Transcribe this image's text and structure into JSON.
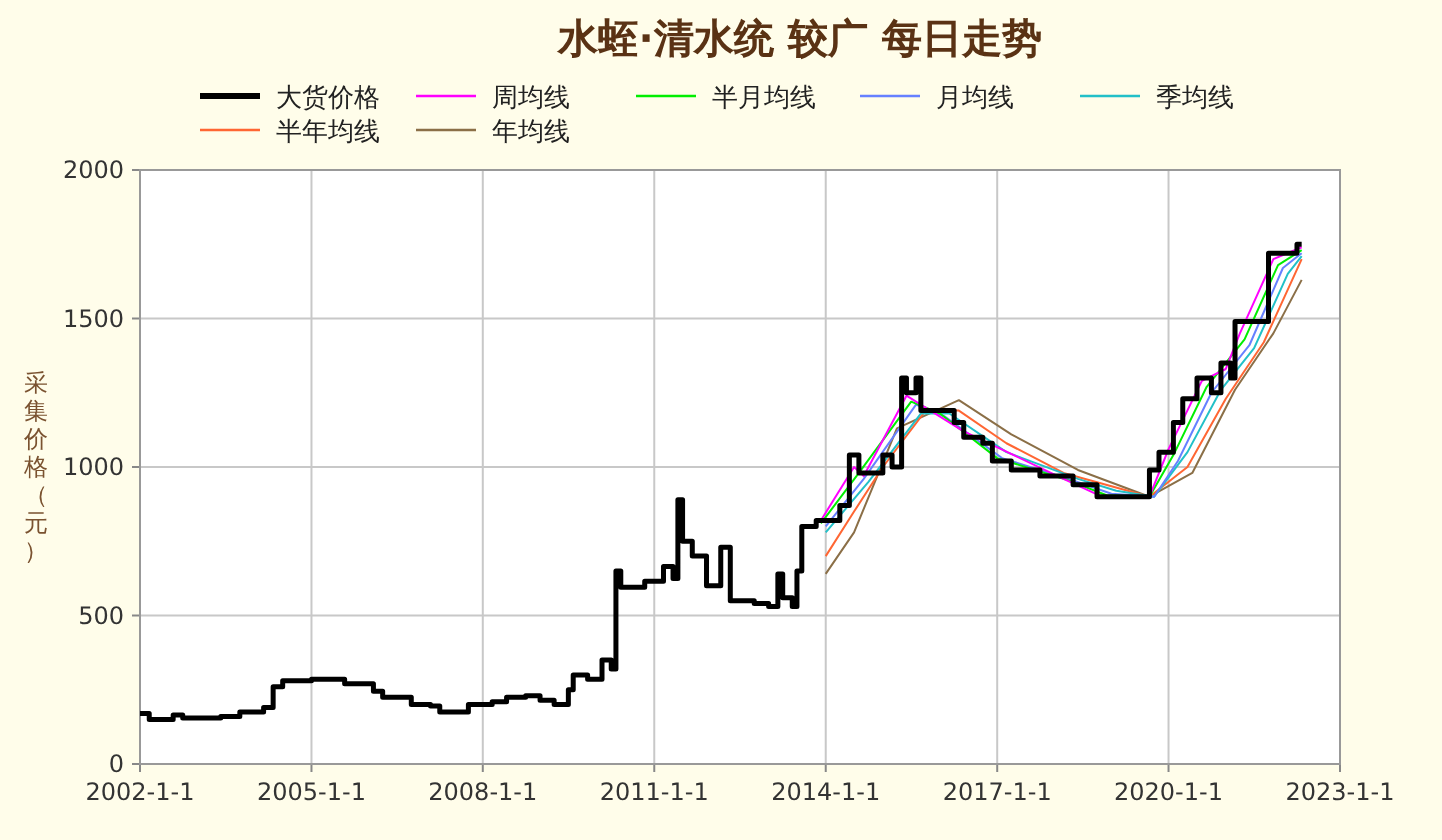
{
  "chart_data": {
    "type": "line",
    "title": "水蛭·清水统 较广 每日走势",
    "ylabel": "采集价格（元）",
    "legend": "top",
    "grid": true,
    "xlim": [
      "2002-01-01",
      "2023-01-01"
    ],
    "xticks": [
      {
        "value": "2002-01-01",
        "label": "2002-1-1"
      },
      {
        "value": "2005-01-01",
        "label": "2005-1-1"
      },
      {
        "value": "2008-01-01",
        "label": "2008-1-1"
      },
      {
        "value": "2011-01-01",
        "label": "2011-1-1"
      },
      {
        "value": "2014-01-01",
        "label": "2014-1-1"
      },
      {
        "value": "2017-01-01",
        "label": "2017-1-1"
      },
      {
        "value": "2020-01-01",
        "label": "2020-1-1"
      },
      {
        "value": "2023-01-01",
        "label": "2023-1-1"
      }
    ],
    "ylim": [
      0,
      2000
    ],
    "yticks": [
      0,
      500,
      1000,
      1500,
      2000
    ],
    "series": [
      {
        "name": "大货价格",
        "type": "step",
        "color": "#000000",
        "x": [
          "2002-01",
          "2002-03",
          "2002-08",
          "2002-10",
          "2003-06",
          "2003-10",
          "2004-03",
          "2004-05",
          "2004-07",
          "2005-01",
          "2005-08",
          "2006-02",
          "2006-04",
          "2006-10",
          "2007-02",
          "2007-04",
          "2007-10",
          "2008-03",
          "2008-06",
          "2008-10",
          "2009-01",
          "2009-04",
          "2009-07",
          "2009-08",
          "2009-11",
          "2010-02",
          "2010-04",
          "2010-05",
          "2010-06",
          "2010-11",
          "2011-03",
          "2011-05",
          "2011-06",
          "2011-07",
          "2011-09",
          "2011-12",
          "2012-03",
          "2012-05",
          "2012-10",
          "2013-01",
          "2013-03",
          "2013-04",
          "2013-06",
          "2013-07",
          "2013-08",
          "2013-11",
          "2014-04",
          "2014-06",
          "2014-08",
          "2015-01",
          "2015-03",
          "2015-05",
          "2015-06",
          "2015-08",
          "2015-09",
          "2016-04",
          "2016-06",
          "2016-10",
          "2016-12",
          "2017-04",
          "2017-10",
          "2018-05",
          "2018-10",
          "2019-09",
          "2019-11",
          "2020-02",
          "2020-04",
          "2020-07",
          "2020-10",
          "2020-12",
          "2021-02",
          "2021-03",
          "2021-10",
          "2022-04",
          "2022-05"
        ],
        "values": [
          170,
          150,
          165,
          155,
          160,
          175,
          190,
          260,
          280,
          285,
          270,
          245,
          225,
          200,
          195,
          175,
          200,
          210,
          225,
          230,
          215,
          200,
          250,
          300,
          285,
          350,
          320,
          650,
          595,
          615,
          665,
          625,
          890,
          750,
          700,
          600,
          730,
          550,
          540,
          530,
          640,
          560,
          530,
          650,
          800,
          820,
          870,
          1040,
          980,
          1040,
          1000,
          1300,
          1250,
          1300,
          1190,
          1150,
          1100,
          1080,
          1020,
          990,
          970,
          940,
          900,
          990,
          1050,
          1150,
          1230,
          1300,
          1250,
          1350,
          1300,
          1490,
          1720,
          1750,
          1750
        ]
      },
      {
        "name": "周均线",
        "type": "line",
        "color": "#ff00ff",
        "x": [
          "2013-12",
          "2014-07",
          "2014-09",
          "2015-06",
          "2015-10",
          "2016-06",
          "2018-03",
          "2018-11",
          "2019-09",
          "2020-01",
          "2020-08",
          "2021-01",
          "2021-04",
          "2021-11",
          "2022-05"
        ],
        "values": [
          820,
          1000,
          970,
          1240,
          1200,
          1120,
          960,
          900,
          900,
          1060,
          1290,
          1330,
          1450,
          1700,
          1740
        ]
      },
      {
        "name": "半月均线",
        "type": "line",
        "color": "#00ee00",
        "x": [
          "2013-12",
          "2014-08",
          "2015-07",
          "2016-01",
          "2017-01",
          "2018-04",
          "2018-12",
          "2019-09",
          "2020-02",
          "2020-09",
          "2021-05",
          "2021-12",
          "2022-05"
        ],
        "values": [
          810,
          980,
          1220,
          1180,
          1030,
          955,
          905,
          900,
          1040,
          1270,
          1430,
          1680,
          1730
        ]
      },
      {
        "name": "月均线",
        "type": "line",
        "color": "#6680ff",
        "x": [
          "2014-01",
          "2014-09",
          "2015-08",
          "2016-02",
          "2017-02",
          "2018-05",
          "2019-01",
          "2019-10",
          "2020-03",
          "2020-10",
          "2021-06",
          "2022-01",
          "2022-05"
        ],
        "values": [
          800,
          960,
          1210,
          1170,
          1030,
          955,
          910,
          900,
          1020,
          1250,
          1410,
          1670,
          1720
        ]
      },
      {
        "name": "季均线",
        "type": "line",
        "color": "#22c0c8",
        "x": [
          "2014-01",
          "2014-10",
          "2015-09",
          "2016-03",
          "2017-03",
          "2018-06",
          "2019-02",
          "2019-10",
          "2020-05",
          "2020-12",
          "2021-07",
          "2022-02",
          "2022-05"
        ],
        "values": [
          780,
          950,
          1180,
          1180,
          1050,
          960,
          920,
          900,
          1050,
          1260,
          1400,
          1650,
          1710
        ]
      },
      {
        "name": "半年均线",
        "type": "line",
        "color": "#ff6633",
        "x": [
          "2014-01",
          "2014-07",
          "2015-01",
          "2015-10",
          "2016-05",
          "2017-03",
          "2018-03",
          "2019-09",
          "2020-05",
          "2021-01",
          "2021-09",
          "2022-05"
        ],
        "values": [
          700,
          850,
          1000,
          1190,
          1190,
          1080,
          980,
          900,
          1000,
          1230,
          1420,
          1700
        ]
      },
      {
        "name": "年均线",
        "type": "line",
        "color": "#8b6f47",
        "x": [
          "2014-01",
          "2014-07",
          "2015-04",
          "2016-05",
          "2017-04",
          "2018-06",
          "2019-09",
          "2020-06",
          "2021-03",
          "2021-11",
          "2022-05"
        ],
        "values": [
          640,
          780,
          1130,
          1225,
          1110,
          990,
          900,
          980,
          1260,
          1450,
          1630
        ]
      }
    ]
  }
}
